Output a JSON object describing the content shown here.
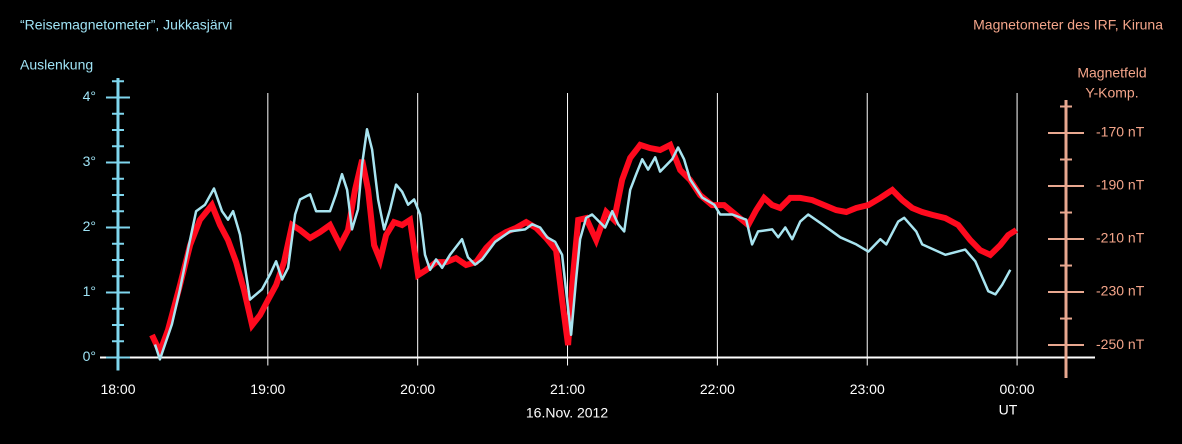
{
  "chart_data": {
    "type": "line",
    "title": "“Reisemagnetometer”, Jukkasjärvi",
    "title_right": "Magnetometer des IRF, Kiruna",
    "ylabel": "Auslenkung",
    "y2label": [
      "Magnetfeld",
      "Y-Komp."
    ],
    "xlabel": "16.Nov. 2012",
    "xunit": "UT",
    "xlim": [
      17.88,
      24.52
    ],
    "xticks": [
      {
        "value": 18,
        "label": "18:00"
      },
      {
        "value": 19,
        "label": "19:00"
      },
      {
        "value": 20,
        "label": "20:00"
      },
      {
        "value": 21,
        "label": "21:00"
      },
      {
        "value": 22,
        "label": "22:00"
      },
      {
        "value": 23,
        "label": "23:00"
      },
      {
        "value": 24,
        "label": "00:00"
      }
    ],
    "ylim": [
      -0.2,
      4.3
    ],
    "yticks": [
      {
        "value": 0,
        "label": "0°"
      },
      {
        "value": 1,
        "label": "1°"
      },
      {
        "value": 2,
        "label": "2°"
      },
      {
        "value": 3,
        "label": "3°"
      },
      {
        "value": 4,
        "label": "4°"
      }
    ],
    "yminorticks": [
      0.25,
      0.5,
      0.75,
      1.25,
      1.5,
      1.75,
      2.25,
      2.5,
      2.75,
      3.25,
      3.5,
      3.75,
      4.25
    ],
    "y2lim": [
      -259.6,
      -149.25
    ],
    "y2ticks": [
      {
        "value": -170,
        "label": "-170 nT"
      },
      {
        "value": -190,
        "label": "-190 nT"
      },
      {
        "value": -210,
        "label": "-210 nT"
      },
      {
        "value": -230,
        "label": "-230 nT"
      },
      {
        "value": -250,
        "label": "-250 nT"
      }
    ],
    "y2minorticks": [
      -240,
      -220,
      -200,
      -180,
      -160
    ],
    "grid": true,
    "axis_color": "#7fd6ee",
    "y2_axis_color": "#e8a890",
    "series": [
      {
        "name": "Magnetfeld Y-Komp.",
        "color": "#ff0a1e",
        "axis": "y2",
        "x": [
          18.227,
          18.28,
          18.334,
          18.414,
          18.481,
          18.547,
          18.627,
          18.681,
          18.734,
          18.788,
          18.841,
          18.895,
          18.948,
          19.001,
          19.055,
          19.108,
          19.162,
          19.215,
          19.282,
          19.348,
          19.415,
          19.482,
          19.535,
          19.582,
          19.629,
          19.669,
          19.709,
          19.749,
          19.789,
          19.842,
          19.896,
          19.949,
          20.003,
          20.056,
          20.123,
          20.19,
          20.256,
          20.323,
          20.39,
          20.457,
          20.523,
          20.59,
          20.657,
          20.724,
          20.79,
          20.857,
          20.924,
          20.964,
          21.004,
          21.031,
          21.071,
          21.124,
          21.191,
          21.258,
          21.311,
          21.364,
          21.418,
          21.485,
          21.551,
          21.618,
          21.685,
          21.752,
          21.818,
          21.885,
          21.965,
          22.045,
          22.125,
          22.206,
          22.259,
          22.312,
          22.366,
          22.419,
          22.486,
          22.553,
          22.633,
          22.713,
          22.793,
          22.86,
          22.927,
          23.007,
          23.087,
          23.167,
          23.234,
          23.3,
          23.367,
          23.434,
          23.521,
          23.607,
          23.688,
          23.754,
          23.821,
          23.888,
          23.941,
          23.995
        ],
        "values": [
          -246.2,
          -252.6,
          -244.3,
          -227.4,
          -212.3,
          -202.8,
          -197.2,
          -204.7,
          -210.4,
          -218.7,
          -229.2,
          -242.5,
          -238.7,
          -233.0,
          -227.4,
          -218.7,
          -204.7,
          -206.6,
          -209.6,
          -207.4,
          -204.7,
          -212.3,
          -206.6,
          -191.5,
          -180.2,
          -191.5,
          -212.3,
          -217.9,
          -208.5,
          -203.6,
          -204.7,
          -202.8,
          -223.6,
          -221.7,
          -218.7,
          -218.7,
          -217.2,
          -219.8,
          -218.7,
          -213.4,
          -209.6,
          -207.4,
          -205.8,
          -203.6,
          -205.8,
          -209.6,
          -214.2,
          -233.0,
          -250.0,
          -227.4,
          -202.8,
          -202.1,
          -210.4,
          -199.8,
          -202.8,
          -187.7,
          -179.4,
          -174.5,
          -175.7,
          -176.4,
          -174.5,
          -184.0,
          -187.7,
          -193.4,
          -197.2,
          -197.2,
          -200.9,
          -204.7,
          -199.1,
          -194.5,
          -197.2,
          -198.3,
          -194.5,
          -194.5,
          -195.3,
          -197.2,
          -199.1,
          -199.8,
          -198.3,
          -197.2,
          -194.5,
          -191.5,
          -195.3,
          -198.3,
          -199.8,
          -200.9,
          -202.1,
          -204.7,
          -210.4,
          -214.2,
          -216.0,
          -212.3,
          -208.5,
          -206.6
        ]
      },
      {
        "name": "Auslenkung",
        "color": "#a8e4f0",
        "x": [
          18.247,
          18.28,
          18.36,
          18.414,
          18.467,
          18.521,
          18.581,
          18.641,
          18.694,
          18.734,
          18.768,
          18.814,
          18.881,
          18.921,
          18.961,
          19.015,
          19.055,
          19.095,
          19.135,
          19.182,
          19.215,
          19.282,
          19.322,
          19.415,
          19.455,
          19.495,
          19.529,
          19.562,
          19.602,
          19.629,
          19.662,
          19.696,
          19.736,
          19.776,
          19.816,
          19.856,
          19.896,
          19.936,
          19.976,
          20.016,
          20.049,
          20.083,
          20.123,
          20.163,
          20.216,
          20.296,
          20.336,
          20.383,
          20.43,
          20.517,
          20.617,
          20.717,
          20.764,
          20.817,
          20.864,
          20.917,
          20.964,
          20.997,
          21.024,
          21.057,
          21.084,
          21.124,
          21.164,
          21.251,
          21.298,
          21.338,
          21.378,
          21.418,
          21.458,
          21.498,
          21.538,
          21.585,
          21.618,
          21.698,
          21.738,
          21.778,
          21.818,
          21.899,
          21.979,
          22.019,
          22.099,
          22.192,
          22.232,
          22.272,
          22.366,
          22.406,
          22.453,
          22.499,
          22.553,
          22.606,
          22.7,
          22.82,
          22.927,
          23.007,
          23.087,
          23.127,
          23.207,
          23.247,
          23.327,
          23.367,
          23.474,
          23.521,
          23.654,
          23.721,
          23.808,
          23.855,
          23.901,
          23.955
        ],
        "values": [
          0.2,
          -0.03,
          0.51,
          1.05,
          1.66,
          2.25,
          2.35,
          2.6,
          2.25,
          2.12,
          2.25,
          1.89,
          0.89,
          0.97,
          1.05,
          1.28,
          1.48,
          1.2,
          1.38,
          2.2,
          2.43,
          2.51,
          2.25,
          2.25,
          2.51,
          2.82,
          2.58,
          1.97,
          2.28,
          2.97,
          3.51,
          3.2,
          2.43,
          1.97,
          2.28,
          2.66,
          2.55,
          2.35,
          2.43,
          2.2,
          1.58,
          1.35,
          1.51,
          1.38,
          1.58,
          1.82,
          1.54,
          1.43,
          1.51,
          1.78,
          1.94,
          1.97,
          2.05,
          2.0,
          1.85,
          1.78,
          1.58,
          0.89,
          0.35,
          1.2,
          1.82,
          2.15,
          2.2,
          2.0,
          2.25,
          2.05,
          1.94,
          2.58,
          2.82,
          3.05,
          2.89,
          3.08,
          2.86,
          3.05,
          3.23,
          3.05,
          2.74,
          2.46,
          2.35,
          2.2,
          2.2,
          2.12,
          1.74,
          1.94,
          1.97,
          1.85,
          2.0,
          1.82,
          2.09,
          2.2,
          2.05,
          1.85,
          1.74,
          1.63,
          1.82,
          1.74,
          2.09,
          2.15,
          1.94,
          1.74,
          1.63,
          1.58,
          1.66,
          1.48,
          1.02,
          0.97,
          1.12,
          1.35
        ]
      }
    ]
  }
}
